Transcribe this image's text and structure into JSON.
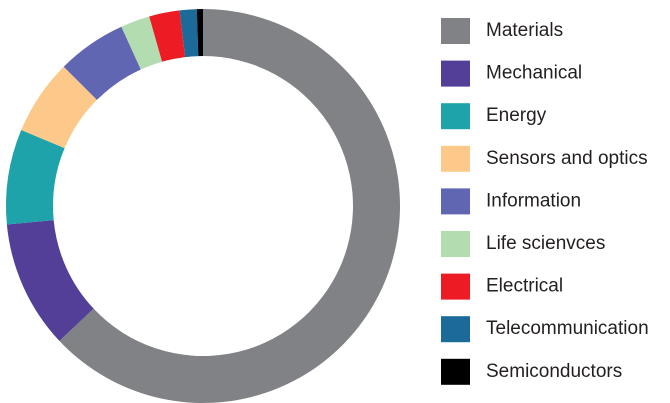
{
  "chart_data": {
    "type": "donut",
    "categories": [
      "Materials",
      "Mechanical",
      "Energy",
      "Sensors and optics",
      "Information",
      "Life scienvces",
      "Electrical",
      "Telecommunication",
      "Semiconductors"
    ],
    "values": [
      63,
      10.5,
      7.8,
      6.2,
      5.7,
      2.4,
      2.5,
      1.4,
      0.5
    ],
    "colors": [
      "#808285",
      "#533e98",
      "#1fa3ab",
      "#fdc98a",
      "#6166b3",
      "#b3dcb1",
      "#ed1c24",
      "#1b6a9a",
      "#000000"
    ],
    "legend": "right"
  }
}
